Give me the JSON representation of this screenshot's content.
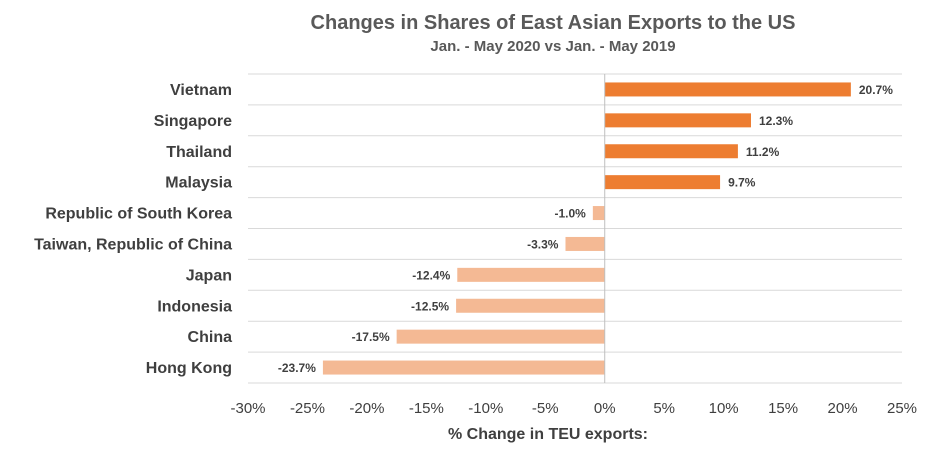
{
  "chart_data": {
    "type": "bar",
    "orientation": "horizontal",
    "title": "Changes in Shares of East Asian Exports to the US",
    "subtitle": "Jan. - May 2020 vs Jan. - May 2019",
    "xlabel": "% Change in TEU exports:",
    "ylabel": "",
    "xlim": [
      -30,
      25
    ],
    "x_ticks": [
      "-30%",
      "-25%",
      "-20%",
      "-15%",
      "-10%",
      "-5%",
      "0%",
      "5%",
      "10%",
      "15%",
      "20%",
      "25%"
    ],
    "grid": "horizontal",
    "legend": "none",
    "categories": [
      "Vietnam",
      "Singapore",
      "Thailand",
      "Malaysia",
      "Republic of South Korea",
      "Taiwan, Republic of China",
      "Japan",
      "Indonesia",
      "China",
      "Hong Kong"
    ],
    "values": [
      20.7,
      12.3,
      11.2,
      9.7,
      -1.0,
      -3.3,
      -12.4,
      -12.5,
      -17.5,
      -23.7
    ],
    "data_labels": [
      "20.7%",
      "12.3%",
      "11.2%",
      "9.7%",
      "-1.0%",
      "-3.3%",
      "-12.4%",
      "-12.5%",
      "-17.5%",
      "-23.7%"
    ],
    "colors": {
      "positive": "#ed7d31",
      "negative": "#f4b994",
      "grid": "#d9d9d9",
      "axis": "#bfbfbf",
      "text": "#3f3f3f"
    }
  }
}
